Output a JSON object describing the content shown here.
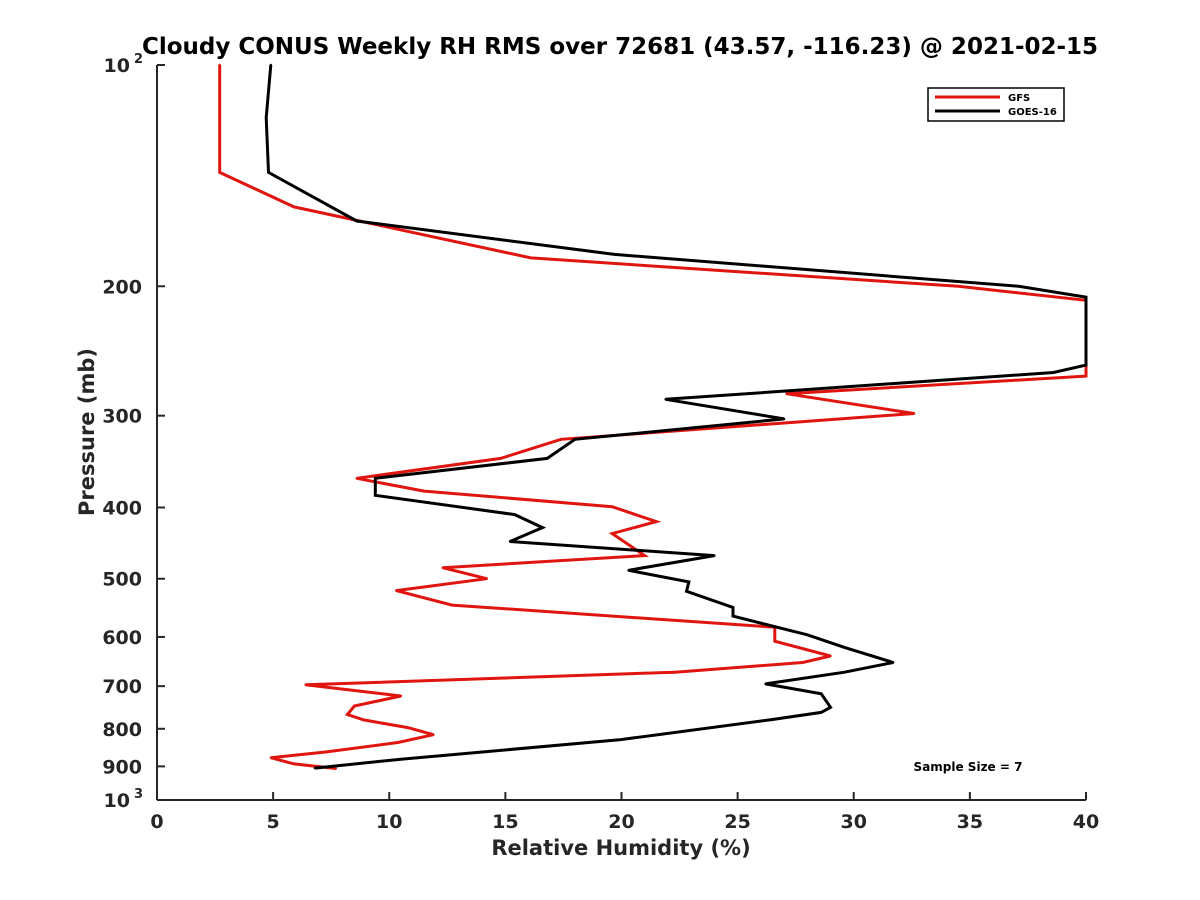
{
  "chart_data": {
    "type": "line",
    "title": "Cloudy CONUS Weekly RH RMS over 72681 (43.57, -116.23) @ 2021-02-15",
    "xlabel": "Relative Humidity (%)",
    "ylabel": "Pressure (mb)",
    "xlim": [
      0,
      40
    ],
    "ylim": [
      100,
      1000
    ],
    "y_scale": "log",
    "y_reversed": true,
    "x_ticks": [
      0,
      5,
      10,
      15,
      20,
      25,
      30,
      35,
      40
    ],
    "y_ticks": [
      {
        "value": 100,
        "base": "10",
        "exp": "2"
      },
      {
        "value": 200,
        "label": "200"
      },
      {
        "value": 300,
        "label": "300"
      },
      {
        "value": 400,
        "label": "400"
      },
      {
        "value": 500,
        "label": "500"
      },
      {
        "value": 600,
        "label": "600"
      },
      {
        "value": 700,
        "label": "700"
      },
      {
        "value": 800,
        "label": "800"
      },
      {
        "value": 900,
        "label": "900"
      },
      {
        "value": 1000,
        "base": "10",
        "exp": "3"
      }
    ],
    "grid": false,
    "legend_position": "top-right",
    "annotation": "Sample Size = 7",
    "series": [
      {
        "name": "GFS",
        "color": "#e0150f",
        "points": [
          [
            2.7,
            100
          ],
          [
            2.7,
            140
          ],
          [
            5.9,
            156
          ],
          [
            16.1,
            183
          ],
          [
            34.5,
            200
          ],
          [
            40,
            209
          ],
          [
            40,
            265
          ],
          [
            27.1,
            280
          ],
          [
            32.6,
            298
          ],
          [
            17.4,
            323
          ],
          [
            14.8,
            343
          ],
          [
            8.6,
            365
          ],
          [
            11.5,
            380
          ],
          [
            19.6,
            399
          ],
          [
            21.5,
            418
          ],
          [
            19.6,
            434
          ],
          [
            21.0,
            465
          ],
          [
            12.3,
            483
          ],
          [
            14.2,
            500
          ],
          [
            10.3,
            519
          ],
          [
            12.7,
            543
          ],
          [
            26.6,
            582
          ],
          [
            26.6,
            608
          ],
          [
            29.0,
            637
          ],
          [
            27.8,
            650
          ],
          [
            22.3,
            670
          ],
          [
            6.4,
            697
          ],
          [
            10.5,
            722
          ],
          [
            8.5,
            745
          ],
          [
            8.2,
            765
          ],
          [
            8.9,
            778
          ],
          [
            10.8,
            797
          ],
          [
            11.9,
            815
          ],
          [
            10.4,
            835
          ],
          [
            7.3,
            860
          ],
          [
            4.9,
            876
          ],
          [
            5.9,
            893
          ],
          [
            7.7,
            906
          ]
        ]
      },
      {
        "name": "GOES-16",
        "color": "#000000",
        "points": [
          [
            4.9,
            100
          ],
          [
            4.7,
            118
          ],
          [
            4.8,
            140
          ],
          [
            8.6,
            163
          ],
          [
            19.7,
            181
          ],
          [
            37.1,
            200
          ],
          [
            40,
            207
          ],
          [
            40,
            256
          ],
          [
            38.6,
            262
          ],
          [
            21.9,
            285
          ],
          [
            27.0,
            303
          ],
          [
            18.0,
            323
          ],
          [
            16.8,
            343
          ],
          [
            9.4,
            365
          ],
          [
            9.4,
            385
          ],
          [
            15.4,
            409
          ],
          [
            16.6,
            426
          ],
          [
            15.2,
            445
          ],
          [
            24.0,
            465
          ],
          [
            20.3,
            487
          ],
          [
            22.9,
            505
          ],
          [
            22.8,
            520
          ],
          [
            24.8,
            547
          ],
          [
            24.8,
            562
          ],
          [
            28.0,
            596
          ],
          [
            29.6,
            620
          ],
          [
            31.7,
            650
          ],
          [
            29.6,
            670
          ],
          [
            26.2,
            695
          ],
          [
            28.6,
            717
          ],
          [
            29.0,
            748
          ],
          [
            28.6,
            760
          ],
          [
            26.5,
            777
          ],
          [
            19.9,
            828
          ],
          [
            10.5,
            880
          ],
          [
            6.8,
            905
          ]
        ]
      }
    ]
  }
}
